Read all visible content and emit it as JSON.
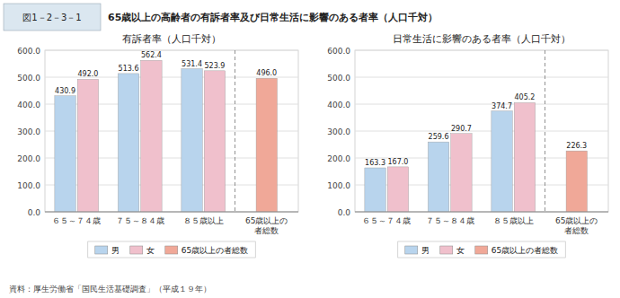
{
  "title": "65歳以上の高齢者の有訴者率及び日常生活に影響のある者率（人口千対）",
  "annotations": [
    "図1－2－3－1",
    "資料：厚生労働省「国民生活基礎調査」（平成１９年）"
  ],
  "chart_data": [
    {
      "type": "bar",
      "title": "有訴者率（人口千対）",
      "categories": [
        "６５～７４歳",
        "７５～８４歳",
        "８５歳以上",
        "65歳以上の\n者総数"
      ],
      "series": [
        {
          "name": "男",
          "color": "#b8d4ed",
          "values": [
            430.9,
            513.6,
            531.4,
            null
          ]
        },
        {
          "name": "女",
          "color": "#f0c0cc",
          "values": [
            492.0,
            562.4,
            523.9,
            null
          ],
          "value_labels": [
            "492.0",
            "562.4",
            "523.9",
            null
          ]
        },
        {
          "name": "65歳以上の者総数",
          "color": "#f0a898",
          "values": [
            null,
            null,
            null,
            496.0
          ],
          "value_labels": [
            null,
            null,
            null,
            "496.0"
          ]
        }
      ],
      "ylim": [
        0,
        600
      ],
      "yticks": [
        {
          "value": 0,
          "label": "0.0"
        },
        {
          "value": 100,
          "label": "100.0"
        },
        {
          "value": 200,
          "label": "200.0"
        },
        {
          "value": 300,
          "label": "300.0"
        },
        {
          "value": 400,
          "label": "400.0"
        },
        {
          "value": 500,
          "label": "500.0"
        },
        {
          "value": 600,
          "label": "600.0"
        }
      ],
      "grid": true,
      "legend": "bottom",
      "data_labels": true
    },
    {
      "type": "bar",
      "title": "日常生活に影響のある者率（人口千対）",
      "categories": [
        "６５～７４歳",
        "７５～８４歳",
        "８５歳以上",
        "65歳以上の\n者総数"
      ],
      "series": [
        {
          "name": "男",
          "color": "#b8d4ed",
          "values": [
            163.3,
            259.6,
            374.7,
            null
          ]
        },
        {
          "name": "女",
          "color": "#f0c0cc",
          "values": [
            167.0,
            290.7,
            405.2,
            null
          ],
          "value_labels": [
            "167.0",
            "290.7",
            "405.2",
            null
          ]
        },
        {
          "name": "65歳以上の者総数",
          "color": "#f0a898",
          "values": [
            null,
            null,
            null,
            226.3
          ]
        }
      ],
      "ylim": [
        0,
        600
      ],
      "yticks": [
        {
          "value": 0,
          "label": "0.0"
        },
        {
          "value": 100,
          "label": "100.0"
        },
        {
          "value": 200,
          "label": "200.0"
        },
        {
          "value": 300,
          "label": "300.0"
        },
        {
          "value": 400,
          "label": "400.0"
        },
        {
          "value": 500,
          "label": "500.0"
        },
        {
          "value": 600,
          "label": "600.0"
        }
      ],
      "grid": true,
      "legend": "bottom",
      "data_labels": true
    }
  ]
}
